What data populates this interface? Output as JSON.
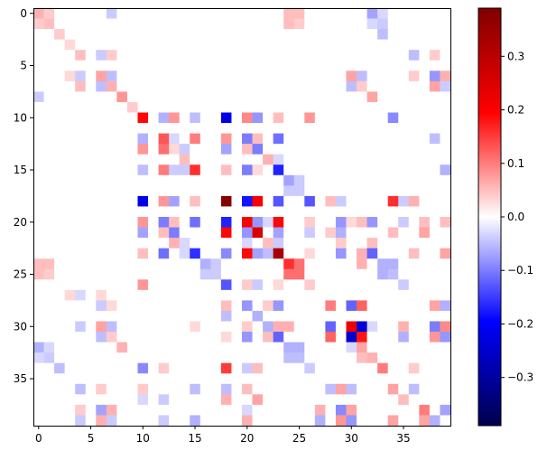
{
  "chart_data": {
    "type": "heatmap",
    "title": "",
    "xlabel": "",
    "ylabel": "",
    "rows": 40,
    "cols": 40,
    "colormap": "seismic",
    "vlim": [
      -0.39,
      0.39
    ],
    "default_value": 0.0,
    "x_ticks": [
      "0",
      "5",
      "10",
      "15",
      "20",
      "25",
      "30",
      "35"
    ],
    "y_ticks": [
      "0",
      "5",
      "10",
      "15",
      "20",
      "25",
      "30",
      "35"
    ],
    "colorbar_ticks": [
      "0.3",
      "0.2",
      "0.1",
      "0.0",
      "−0.1",
      "−0.2",
      "−0.3"
    ],
    "colorbar_tick_values": [
      0.3,
      0.2,
      0.1,
      0.0,
      -0.1,
      -0.2,
      -0.3
    ],
    "grid": false,
    "cells": [
      [
        0,
        0,
        0.06
      ],
      [
        0,
        1,
        0.04
      ],
      [
        0,
        7,
        -0.04
      ],
      [
        0,
        24,
        0.05
      ],
      [
        0,
        25,
        0.05
      ],
      [
        0,
        32,
        -0.07
      ],
      [
        0,
        33,
        -0.03
      ],
      [
        1,
        0,
        0.04
      ],
      [
        1,
        1,
        0.05
      ],
      [
        1,
        24,
        0.05
      ],
      [
        1,
        25,
        0.04
      ],
      [
        1,
        32,
        -0.03
      ],
      [
        1,
        33,
        -0.04
      ],
      [
        2,
        2,
        0.04
      ],
      [
        2,
        33,
        -0.05
      ],
      [
        3,
        3,
        0.03
      ],
      [
        4,
        4,
        0.05
      ],
      [
        4,
        6,
        -0.04
      ],
      [
        4,
        7,
        0.04
      ],
      [
        4,
        36,
        -0.05
      ],
      [
        4,
        38,
        0.04
      ],
      [
        6,
        3,
        0.03
      ],
      [
        6,
        4,
        -0.04
      ],
      [
        6,
        6,
        0.07
      ],
      [
        6,
        7,
        -0.05
      ],
      [
        6,
        30,
        0.07
      ],
      [
        6,
        31,
        -0.05
      ],
      [
        6,
        36,
        0.04
      ],
      [
        6,
        38,
        -0.08
      ],
      [
        6,
        39,
        0.06
      ],
      [
        7,
        4,
        0.05
      ],
      [
        7,
        6,
        -0.05
      ],
      [
        7,
        7,
        0.06
      ],
      [
        7,
        30,
        -0.05
      ],
      [
        7,
        31,
        0.04
      ],
      [
        7,
        38,
        0.07
      ],
      [
        7,
        39,
        -0.04
      ],
      [
        8,
        0,
        -0.04
      ],
      [
        8,
        8,
        0.08
      ],
      [
        8,
        32,
        0.07
      ],
      [
        9,
        9,
        0.04
      ],
      [
        10,
        10,
        0.19
      ],
      [
        10,
        12,
        -0.06
      ],
      [
        10,
        13,
        0.08
      ],
      [
        10,
        15,
        -0.05
      ],
      [
        10,
        18,
        -0.22
      ],
      [
        10,
        20,
        0.09
      ],
      [
        10,
        21,
        -0.08
      ],
      [
        10,
        23,
        0.05
      ],
      [
        10,
        26,
        0.08
      ],
      [
        10,
        34,
        -0.09
      ],
      [
        12,
        10,
        -0.06
      ],
      [
        12,
        12,
        0.13
      ],
      [
        12,
        13,
        -0.03
      ],
      [
        12,
        15,
        0.1
      ],
      [
        12,
        18,
        0.08
      ],
      [
        12,
        20,
        -0.1
      ],
      [
        12,
        21,
        0.05
      ],
      [
        12,
        23,
        -0.11
      ],
      [
        12,
        38,
        -0.05
      ],
      [
        13,
        10,
        0.08
      ],
      [
        13,
        12,
        0.11
      ],
      [
        13,
        13,
        0.03
      ],
      [
        13,
        14,
        -0.04
      ],
      [
        13,
        18,
        -0.07
      ],
      [
        13,
        20,
        0.05
      ],
      [
        13,
        21,
        -0.1
      ],
      [
        14,
        14,
        0.05
      ],
      [
        14,
        22,
        0.06
      ],
      [
        14,
        23,
        -0.03
      ],
      [
        15,
        10,
        -0.05
      ],
      [
        15,
        12,
        0.1
      ],
      [
        15,
        13,
        -0.04
      ],
      [
        15,
        14,
        -0.04
      ],
      [
        15,
        15,
        0.16
      ],
      [
        15,
        18,
        0.05
      ],
      [
        15,
        20,
        -0.1
      ],
      [
        15,
        21,
        0.03
      ],
      [
        15,
        23,
        -0.17
      ],
      [
        15,
        39,
        -0.06
      ],
      [
        16,
        24,
        -0.07
      ],
      [
        16,
        25,
        -0.04
      ],
      [
        17,
        24,
        -0.04
      ],
      [
        17,
        25,
        -0.04
      ],
      [
        18,
        10,
        -0.22
      ],
      [
        18,
        12,
        0.08
      ],
      [
        18,
        13,
        -0.07
      ],
      [
        18,
        15,
        0.05
      ],
      [
        18,
        18,
        0.38
      ],
      [
        18,
        20,
        -0.18
      ],
      [
        18,
        21,
        0.2
      ],
      [
        18,
        23,
        -0.13
      ],
      [
        18,
        26,
        -0.13
      ],
      [
        18,
        28,
        0.05
      ],
      [
        18,
        29,
        -0.04
      ],
      [
        18,
        34,
        0.16
      ],
      [
        18,
        35,
        -0.04
      ],
      [
        18,
        36,
        0.06
      ],
      [
        20,
        10,
        0.08
      ],
      [
        20,
        12,
        -0.1
      ],
      [
        20,
        13,
        0.05
      ],
      [
        20,
        15,
        -0.11
      ],
      [
        20,
        18,
        -0.17
      ],
      [
        20,
        20,
        0.2
      ],
      [
        20,
        21,
        -0.08
      ],
      [
        20,
        22,
        -0.03
      ],
      [
        20,
        23,
        0.19
      ],
      [
        20,
        26,
        0.04
      ],
      [
        20,
        29,
        -0.08
      ],
      [
        20,
        30,
        0.03
      ],
      [
        20,
        31,
        0.05
      ],
      [
        20,
        32,
        -0.08
      ],
      [
        20,
        35,
        -0.04
      ],
      [
        20,
        37,
        0.05
      ],
      [
        20,
        39,
        0.05
      ],
      [
        21,
        10,
        -0.07
      ],
      [
        21,
        12,
        0.05
      ],
      [
        21,
        13,
        -0.1
      ],
      [
        21,
        18,
        0.19
      ],
      [
        21,
        20,
        -0.08
      ],
      [
        21,
        21,
        0.25
      ],
      [
        21,
        23,
        -0.07
      ],
      [
        21,
        26,
        -0.04
      ],
      [
        21,
        28,
        0.04
      ],
      [
        21,
        29,
        -0.06
      ],
      [
        21,
        34,
        0.05
      ],
      [
        21,
        37,
        0.07
      ],
      [
        22,
        13,
        0.06
      ],
      [
        22,
        14,
        -0.03
      ],
      [
        22,
        20,
        -0.03
      ],
      [
        22,
        22,
        0.05
      ],
      [
        22,
        23,
        -0.04
      ],
      [
        22,
        29,
        0.04
      ],
      [
        22,
        32,
        0.05
      ],
      [
        23,
        10,
        0.05
      ],
      [
        23,
        12,
        -0.11
      ],
      [
        23,
        14,
        -0.03
      ],
      [
        23,
        15,
        -0.16
      ],
      [
        23,
        18,
        -0.09
      ],
      [
        23,
        20,
        0.19
      ],
      [
        23,
        21,
        -0.07
      ],
      [
        23,
        22,
        -0.05
      ],
      [
        23,
        23,
        0.33
      ],
      [
        23,
        26,
        0.03
      ],
      [
        23,
        29,
        -0.08
      ],
      [
        23,
        31,
        0.06
      ],
      [
        23,
        32,
        -0.12
      ],
      [
        23,
        36,
        0.05
      ],
      [
        23,
        39,
        0.07
      ],
      [
        24,
        0,
        0.05
      ],
      [
        24,
        1,
        0.05
      ],
      [
        24,
        16,
        -0.06
      ],
      [
        24,
        17,
        -0.04
      ],
      [
        24,
        24,
        0.16
      ],
      [
        24,
        25,
        0.11
      ],
      [
        24,
        31,
        0.06
      ],
      [
        24,
        33,
        -0.06
      ],
      [
        24,
        34,
        -0.06
      ],
      [
        25,
        0,
        0.05
      ],
      [
        25,
        1,
        0.04
      ],
      [
        25,
        16,
        -0.04
      ],
      [
        25,
        17,
        -0.04
      ],
      [
        25,
        24,
        0.11
      ],
      [
        25,
        25,
        0.11
      ],
      [
        25,
        33,
        -0.06
      ],
      [
        25,
        34,
        -0.05
      ],
      [
        26,
        10,
        0.08
      ],
      [
        26,
        18,
        -0.13
      ],
      [
        26,
        20,
        0.04
      ],
      [
        26,
        21,
        -0.04
      ],
      [
        26,
        23,
        0.03
      ],
      [
        26,
        26,
        0.04
      ],
      [
        26,
        35,
        -0.04
      ],
      [
        27,
        3,
        0.03
      ],
      [
        27,
        4,
        -0.03
      ],
      [
        27,
        6,
        0.03
      ],
      [
        28,
        6,
        -0.04
      ],
      [
        28,
        7,
        0.03
      ],
      [
        28,
        18,
        0.05
      ],
      [
        28,
        20,
        -0.08
      ],
      [
        28,
        22,
        0.04
      ],
      [
        28,
        23,
        -0.08
      ],
      [
        28,
        28,
        0.1
      ],
      [
        28,
        30,
        -0.12
      ],
      [
        28,
        31,
        0.12
      ],
      [
        28,
        38,
        0.07
      ],
      [
        28,
        39,
        -0.06
      ],
      [
        29,
        18,
        -0.05
      ],
      [
        29,
        21,
        -0.06
      ],
      [
        30,
        4,
        -0.04
      ],
      [
        30,
        6,
        0.07
      ],
      [
        30,
        7,
        -0.05
      ],
      [
        30,
        15,
        0.03
      ],
      [
        30,
        20,
        0.04
      ],
      [
        30,
        22,
        -0.06
      ],
      [
        30,
        23,
        0.06
      ],
      [
        30,
        24,
        0.06
      ],
      [
        30,
        28,
        -0.12
      ],
      [
        30,
        30,
        0.22
      ],
      [
        30,
        31,
        -0.24
      ],
      [
        30,
        32,
        -0.03
      ],
      [
        30,
        35,
        0.06
      ],
      [
        30,
        38,
        -0.1
      ],
      [
        30,
        39,
        0.09
      ],
      [
        31,
        6,
        -0.05
      ],
      [
        31,
        7,
        0.04
      ],
      [
        31,
        18,
        0.03
      ],
      [
        31,
        20,
        -0.08
      ],
      [
        31,
        22,
        0.05
      ],
      [
        31,
        23,
        -0.12
      ],
      [
        31,
        28,
        0.12
      ],
      [
        31,
        30,
        -0.25
      ],
      [
        31,
        31,
        0.18
      ],
      [
        31,
        35,
        -0.06
      ],
      [
        31,
        38,
        0.08
      ],
      [
        31,
        39,
        -0.08
      ],
      [
        32,
        0,
        -0.06
      ],
      [
        32,
        1,
        -0.03
      ],
      [
        32,
        8,
        0.06
      ],
      [
        32,
        24,
        -0.06
      ],
      [
        32,
        25,
        -0.06
      ],
      [
        32,
        30,
        -0.03
      ],
      [
        32,
        31,
        0.07
      ],
      [
        33,
        0,
        -0.03
      ],
      [
        33,
        1,
        -0.04
      ],
      [
        33,
        24,
        -0.05
      ],
      [
        33,
        25,
        -0.05
      ],
      [
        33,
        31,
        0.05
      ],
      [
        33,
        32,
        0.06
      ],
      [
        34,
        2,
        -0.05
      ],
      [
        34,
        10,
        -0.09
      ],
      [
        34,
        12,
        0.04
      ],
      [
        34,
        18,
        0.15
      ],
      [
        34,
        20,
        -0.04
      ],
      [
        34,
        21,
        0.05
      ],
      [
        34,
        26,
        -0.04
      ],
      [
        34,
        33,
        0.1
      ],
      [
        34,
        36,
        0.04
      ],
      [
        36,
        4,
        -0.05
      ],
      [
        36,
        6,
        0.04
      ],
      [
        36,
        10,
        0.04
      ],
      [
        36,
        15,
        -0.05
      ],
      [
        36,
        18,
        -0.05
      ],
      [
        36,
        20,
        0.05
      ],
      [
        36,
        28,
        -0.05
      ],
      [
        36,
        29,
        0.07
      ],
      [
        36,
        30,
        -0.05
      ],
      [
        36,
        34,
        0.07
      ],
      [
        36,
        36,
        -0.05
      ],
      [
        37,
        10,
        -0.03
      ],
      [
        37,
        12,
        -0.04
      ],
      [
        37,
        18,
        0.06
      ],
      [
        37,
        21,
        0.07
      ],
      [
        37,
        35,
        0.05
      ],
      [
        38,
        4,
        0.04
      ],
      [
        38,
        6,
        -0.07
      ],
      [
        38,
        7,
        0.06
      ],
      [
        38,
        20,
        -0.03
      ],
      [
        38,
        27,
        0.06
      ],
      [
        38,
        29,
        -0.09
      ],
      [
        38,
        30,
        0.07
      ],
      [
        38,
        37,
        0.1
      ],
      [
        38,
        39,
        -0.07
      ],
      [
        39,
        4,
        -0.04
      ],
      [
        39,
        6,
        0.06
      ],
      [
        39,
        7,
        -0.04
      ],
      [
        39,
        12,
        -0.04
      ],
      [
        39,
        15,
        -0.06
      ],
      [
        39,
        20,
        0.06
      ],
      [
        39,
        27,
        -0.06
      ],
      [
        39,
        29,
        0.08
      ],
      [
        39,
        30,
        -0.08
      ],
      [
        39,
        34,
        0.07
      ],
      [
        39,
        37,
        0.07
      ],
      [
        39,
        38,
        -0.06
      ]
    ]
  }
}
